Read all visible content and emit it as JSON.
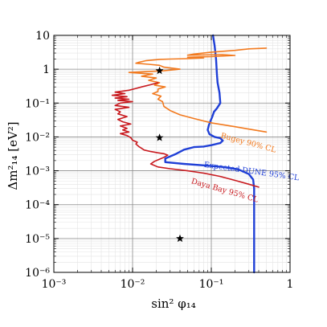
{
  "chart_data": {
    "type": "line",
    "xlabel": "sin² φ₁₄",
    "ylabel": "Δm²₁₄ [eV²]",
    "xscale": "log",
    "yscale": "log",
    "xlim": [
      0.001,
      1
    ],
    "ylim": [
      1e-06,
      10
    ],
    "grid": true,
    "x_ticks": [
      {
        "value": 0.001,
        "label": "10⁻³"
      },
      {
        "value": 0.01,
        "label": "10⁻²"
      },
      {
        "value": 0.1,
        "label": "10⁻¹"
      },
      {
        "value": 1,
        "label": "1"
      }
    ],
    "y_ticks": [
      {
        "value": 1e-06,
        "label": "10⁻⁶"
      },
      {
        "value": 1e-05,
        "label": "10⁻⁵"
      },
      {
        "value": 0.0001,
        "label": "10⁻⁴"
      },
      {
        "value": 0.001,
        "label": "10⁻³"
      },
      {
        "value": 0.01,
        "label": "10⁻²"
      },
      {
        "value": 0.1,
        "label": "10⁻¹"
      },
      {
        "value": 1,
        "label": "1"
      },
      {
        "value": 10,
        "label": "10"
      }
    ],
    "series": [
      {
        "name": "Expected DUNE 95% CL",
        "color": "#1f3fd6",
        "points": [
          [
            0.105,
            10
          ],
          [
            0.11,
            5
          ],
          [
            0.115,
            2
          ],
          [
            0.118,
            0.7
          ],
          [
            0.12,
            0.4
          ],
          [
            0.127,
            0.2
          ],
          [
            0.13,
            0.1
          ],
          [
            0.118,
            0.07
          ],
          [
            0.108,
            0.055
          ],
          [
            0.103,
            0.04
          ],
          [
            0.098,
            0.03
          ],
          [
            0.093,
            0.022
          ],
          [
            0.09,
            0.016
          ],
          [
            0.095,
            0.012
          ],
          [
            0.11,
            0.01
          ],
          [
            0.13,
            0.0092
          ],
          [
            0.14,
            0.0078
          ],
          [
            0.13,
            0.0066
          ],
          [
            0.1,
            0.0057
          ],
          [
            0.08,
            0.0052
          ],
          [
            0.06,
            0.005
          ],
          [
            0.045,
            0.0042
          ],
          [
            0.035,
            0.0031
          ],
          [
            0.026,
            0.0023
          ],
          [
            0.026,
            0.0018
          ],
          [
            0.045,
            0.0016
          ],
          [
            0.08,
            0.00145
          ],
          [
            0.14,
            0.0013
          ],
          [
            0.22,
            0.0011
          ],
          [
            0.3,
            0.0008
          ],
          [
            0.34,
            0.00055
          ],
          [
            0.35,
            0.0003
          ],
          [
            0.35,
            0.0001
          ],
          [
            0.35,
            1e-05
          ],
          [
            0.35,
            1e-06
          ]
        ]
      },
      {
        "name": "Bugey 90% CL",
        "color": "#f27a1f",
        "points": [
          [
            0.5,
            4.2
          ],
          [
            0.3,
            4
          ],
          [
            0.2,
            3.6
          ],
          [
            0.1,
            3.2
          ],
          [
            0.06,
            2.8
          ],
          [
            0.05,
            2.6
          ],
          [
            0.14,
            2.7
          ],
          [
            0.2,
            2.55
          ],
          [
            0.1,
            2.35
          ],
          [
            0.05,
            2.25
          ],
          [
            0.08,
            2.15
          ],
          [
            0.05,
            2.05
          ],
          [
            0.03,
            2.0
          ],
          [
            0.022,
            1.95
          ],
          [
            0.015,
            1.8
          ],
          [
            0.012,
            1.6
          ],
          [
            0.011,
            1.5
          ],
          [
            0.016,
            1.4
          ],
          [
            0.022,
            1.3
          ],
          [
            0.025,
            1.15
          ],
          [
            0.04,
            1.0
          ],
          [
            0.025,
            0.9
          ],
          [
            0.009,
            0.8
          ],
          [
            0.018,
            0.72
          ],
          [
            0.013,
            0.62
          ],
          [
            0.02,
            0.55
          ],
          [
            0.016,
            0.47
          ],
          [
            0.022,
            0.4
          ],
          [
            0.019,
            0.34
          ],
          [
            0.026,
            0.3
          ],
          [
            0.021,
            0.26
          ],
          [
            0.021,
            0.22
          ],
          [
            0.018,
            0.19
          ],
          [
            0.023,
            0.16
          ],
          [
            0.021,
            0.13
          ],
          [
            0.024,
            0.11
          ],
          [
            0.025,
            0.08
          ],
          [
            0.03,
            0.06
          ],
          [
            0.04,
            0.045
          ],
          [
            0.06,
            0.035
          ],
          [
            0.1,
            0.026
          ],
          [
            0.2,
            0.02
          ],
          [
            0.3,
            0.017
          ],
          [
            0.5,
            0.014
          ]
        ]
      },
      {
        "name": "Daya Bay 95% CL",
        "color": "#c8191e",
        "points": [
          [
            0.021,
            0.4
          ],
          [
            0.017,
            0.35
          ],
          [
            0.013,
            0.3
          ],
          [
            0.011,
            0.27
          ],
          [
            0.009,
            0.24
          ],
          [
            0.006,
            0.21
          ],
          [
            0.008,
            0.19
          ],
          [
            0.0055,
            0.17
          ],
          [
            0.0085,
            0.155
          ],
          [
            0.006,
            0.14
          ],
          [
            0.009,
            0.13
          ],
          [
            0.0065,
            0.12
          ],
          [
            0.01,
            0.11
          ],
          [
            0.007,
            0.1
          ],
          [
            0.006,
            0.085
          ],
          [
            0.009,
            0.075
          ],
          [
            0.006,
            0.065
          ],
          [
            0.007,
            0.055
          ],
          [
            0.0065,
            0.048
          ],
          [
            0.0085,
            0.04
          ],
          [
            0.0065,
            0.033
          ],
          [
            0.0075,
            0.028
          ],
          [
            0.0095,
            0.024
          ],
          [
            0.007,
            0.021
          ],
          [
            0.0085,
            0.018
          ],
          [
            0.0075,
            0.016
          ],
          [
            0.009,
            0.014
          ],
          [
            0.007,
            0.0125
          ],
          [
            0.0085,
            0.011
          ],
          [
            0.0095,
            0.0095
          ],
          [
            0.01,
            0.008
          ],
          [
            0.0115,
            0.007
          ],
          [
            0.011,
            0.0062
          ],
          [
            0.012,
            0.0052
          ],
          [
            0.013,
            0.0046
          ],
          [
            0.014,
            0.0041
          ],
          [
            0.017,
            0.0037
          ],
          [
            0.021,
            0.0034
          ],
          [
            0.025,
            0.0032
          ],
          [
            0.028,
            0.0029
          ],
          [
            0.025,
            0.0025
          ],
          [
            0.022,
            0.0022
          ],
          [
            0.019,
            0.0019
          ],
          [
            0.017,
            0.0016
          ],
          [
            0.021,
            0.0013
          ],
          [
            0.03,
            0.00115
          ],
          [
            0.05,
            0.001
          ],
          [
            0.08,
            0.00085
          ],
          [
            0.13,
            0.00068
          ],
          [
            0.2,
            0.00052
          ],
          [
            0.3,
            0.0004
          ],
          [
            0.4,
            0.00033
          ]
        ]
      }
    ],
    "annotations": [
      {
        "text": "Bugey 90% CL",
        "x": 0.13,
        "y": 0.0095,
        "color": "#f27a1f",
        "angle": 15
      },
      {
        "text": "Expected DUNE 95% CL",
        "x": 0.08,
        "y": 0.0013,
        "color": "#1f3fd6",
        "angle": 8
      },
      {
        "text": "Daya Bay 95% CL",
        "x": 0.055,
        "y": 0.00043,
        "color": "#c8191e",
        "angle": 16
      }
    ],
    "markers": [
      {
        "symbol": "star",
        "x": 0.022,
        "y": 0.9
      },
      {
        "symbol": "star",
        "x": 0.022,
        "y": 0.0095
      },
      {
        "symbol": "star",
        "x": 0.04,
        "y": 1e-05
      }
    ]
  }
}
